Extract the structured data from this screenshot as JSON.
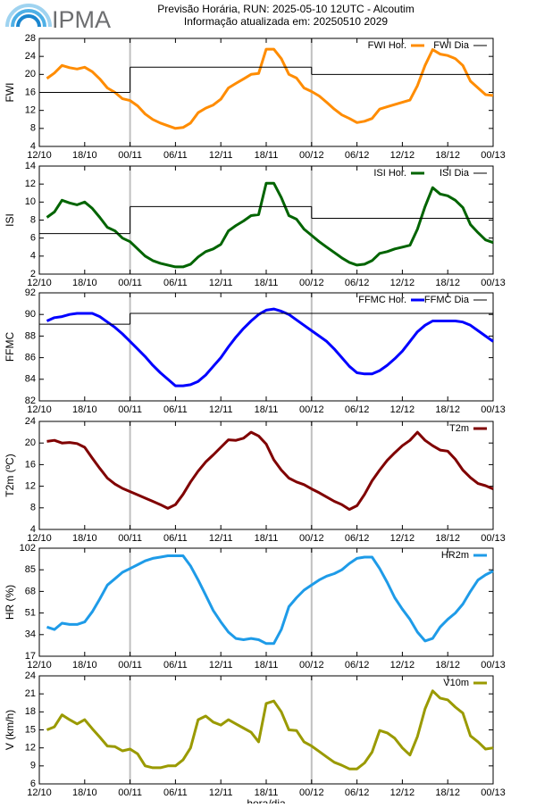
{
  "header": {
    "logo": "IPMA",
    "title": "Previsão Horária, RUN: 2025-05-10 12UTC - Alcoutim",
    "subtitle": "Informação atualizada em: 20250510 2029"
  },
  "chart_data": [
    {
      "type": "line",
      "ylabel": "FWI",
      "legend": "upper right",
      "xlim": [
        0,
        60
      ],
      "vlines": [
        12,
        36
      ],
      "xticks": [
        {
          "value": 0,
          "label": "12/10"
        },
        {
          "value": 6,
          "label": "18/10"
        },
        {
          "value": 12,
          "label": "00/11"
        },
        {
          "value": 18,
          "label": "06/11"
        },
        {
          "value": 24,
          "label": "12/11"
        },
        {
          "value": 30,
          "label": "18/11"
        },
        {
          "value": 36,
          "label": "00/12"
        },
        {
          "value": 42,
          "label": "06/12"
        },
        {
          "value": 48,
          "label": "12/12"
        },
        {
          "value": 54,
          "label": "18/12"
        },
        {
          "value": 60,
          "label": "00/13"
        }
      ],
      "ylim": [
        4,
        28
      ],
      "yticks": [
        4,
        8,
        12,
        16,
        20,
        24,
        28
      ],
      "x": [
        1,
        2,
        3,
        4,
        5,
        6,
        7,
        8,
        9,
        10,
        11,
        12,
        13,
        14,
        15,
        16,
        17,
        18,
        19,
        20,
        21,
        22,
        23,
        24,
        25,
        26,
        27,
        28,
        29,
        30,
        31,
        32,
        33,
        34,
        35,
        36,
        37,
        38,
        39,
        40,
        41,
        42,
        43,
        44,
        45,
        46,
        47,
        48,
        49,
        50,
        51,
        52,
        53,
        54,
        55,
        56,
        57,
        58,
        59,
        60
      ],
      "series": [
        {
          "name": "FWI Hor.",
          "color": "#ff8c00",
          "values": [
            19.1,
            20.3,
            22,
            21.5,
            21.2,
            21.6,
            20.6,
            19,
            17,
            16,
            14.6,
            14.2,
            13,
            11.2,
            10,
            9.2,
            8.6,
            8.0,
            8.2,
            9.2,
            11.5,
            12.5,
            13.2,
            14.5,
            17,
            18,
            19,
            20,
            20.2,
            25.6,
            25.6,
            23.5,
            20,
            19.2,
            17,
            16.2,
            15.2,
            13.8,
            12.3,
            11,
            10.2,
            9.3,
            9.6,
            10.2,
            12.3,
            12.8,
            13.3,
            13.8,
            14.3,
            17.5,
            22,
            25.5,
            24.5,
            24.2,
            23.5,
            22,
            18.5,
            17,
            15.5,
            15.3
          ]
        },
        {
          "name": "FWI Dia",
          "color": "#000000",
          "step": "post",
          "x": [
            0,
            12,
            36
          ],
          "values": [
            16,
            21.6,
            20
          ]
        }
      ]
    },
    {
      "type": "line",
      "ylabel": "ISI",
      "legend": "upper right",
      "xlim": [
        0,
        60
      ],
      "vlines": [
        12,
        36
      ],
      "xticks": [
        {
          "value": 0,
          "label": "12/10"
        },
        {
          "value": 6,
          "label": "18/10"
        },
        {
          "value": 12,
          "label": "00/11"
        },
        {
          "value": 18,
          "label": "06/11"
        },
        {
          "value": 24,
          "label": "12/11"
        },
        {
          "value": 30,
          "label": "18/11"
        },
        {
          "value": 36,
          "label": "00/12"
        },
        {
          "value": 42,
          "label": "06/12"
        },
        {
          "value": 48,
          "label": "12/12"
        },
        {
          "value": 54,
          "label": "18/12"
        },
        {
          "value": 60,
          "label": "00/13"
        }
      ],
      "ylim": [
        2,
        14
      ],
      "yticks": [
        2,
        4,
        6,
        8,
        10,
        12,
        14
      ],
      "x": [
        1,
        2,
        3,
        4,
        5,
        6,
        7,
        8,
        9,
        10,
        11,
        12,
        13,
        14,
        15,
        16,
        17,
        18,
        19,
        20,
        21,
        22,
        23,
        24,
        25,
        26,
        27,
        28,
        29,
        30,
        31,
        32,
        33,
        34,
        35,
        36,
        37,
        38,
        39,
        40,
        41,
        42,
        43,
        44,
        45,
        46,
        47,
        48,
        49,
        50,
        51,
        52,
        53,
        54,
        55,
        56,
        57,
        58,
        59,
        60
      ],
      "series": [
        {
          "name": "ISI Hor.",
          "color": "#006400",
          "values": [
            8.3,
            8.9,
            10.2,
            9.9,
            9.7,
            10,
            9.3,
            8.3,
            7.2,
            6.8,
            6,
            5.6,
            4.8,
            4,
            3.5,
            3.2,
            3,
            2.8,
            2.8,
            3.1,
            3.9,
            4.5,
            4.8,
            5.3,
            6.8,
            7.4,
            7.9,
            8.5,
            8.6,
            12.1,
            12.1,
            10.5,
            8.5,
            8.1,
            7,
            6.3,
            5.6,
            5,
            4.4,
            3.8,
            3.3,
            3,
            3.1,
            3.5,
            4.3,
            4.5,
            4.8,
            5,
            5.2,
            7,
            9.5,
            11.6,
            10.9,
            10.7,
            10.2,
            9.4,
            7.5,
            6.6,
            5.8,
            5.5
          ]
        },
        {
          "name": "ISI Dia",
          "color": "#000000",
          "step": "post",
          "x": [
            0,
            12,
            36
          ],
          "values": [
            6.5,
            9.5,
            8.2
          ]
        }
      ]
    },
    {
      "type": "line",
      "ylabel": "FFMC",
      "legend": "upper right",
      "xlim": [
        0,
        60
      ],
      "vlines": [
        12,
        36
      ],
      "xticks": [
        {
          "value": 0,
          "label": "12/10"
        },
        {
          "value": 6,
          "label": "18/10"
        },
        {
          "value": 12,
          "label": "00/11"
        },
        {
          "value": 18,
          "label": "06/11"
        },
        {
          "value": 24,
          "label": "12/11"
        },
        {
          "value": 30,
          "label": "18/11"
        },
        {
          "value": 36,
          "label": "00/12"
        },
        {
          "value": 42,
          "label": "06/12"
        },
        {
          "value": 48,
          "label": "12/12"
        },
        {
          "value": 54,
          "label": "18/12"
        },
        {
          "value": 60,
          "label": "00/13"
        }
      ],
      "ylim": [
        82,
        92
      ],
      "yticks": [
        82,
        84,
        86,
        88,
        90,
        92
      ],
      "x": [
        1,
        2,
        3,
        4,
        5,
        6,
        7,
        8,
        9,
        10,
        11,
        12,
        13,
        14,
        15,
        16,
        17,
        18,
        19,
        20,
        21,
        22,
        23,
        24,
        25,
        26,
        27,
        28,
        29,
        30,
        31,
        32,
        33,
        34,
        35,
        36,
        37,
        38,
        39,
        40,
        41,
        42,
        43,
        44,
        45,
        46,
        47,
        48,
        49,
        50,
        51,
        52,
        53,
        54,
        55,
        56,
        57,
        58,
        59,
        60
      ],
      "series": [
        {
          "name": "FFMC Hor.",
          "color": "#0000ff",
          "values": [
            89.4,
            89.7,
            89.8,
            90,
            90.1,
            90.1,
            90.1,
            89.8,
            89.3,
            88.8,
            88.2,
            87.5,
            86.8,
            86.1,
            85.3,
            84.6,
            84,
            83.4,
            83.4,
            83.5,
            83.8,
            84.4,
            85.2,
            86,
            87,
            87.9,
            88.7,
            89.4,
            90,
            90.4,
            90.5,
            90.3,
            90,
            89.5,
            89,
            88.5,
            88,
            87.5,
            86.8,
            86,
            85.2,
            84.6,
            84.5,
            84.5,
            84.8,
            85.3,
            85.9,
            86.6,
            87.5,
            88.4,
            89,
            89.4,
            89.4,
            89.4,
            89.4,
            89.3,
            89,
            88.5,
            88,
            87.5
          ]
        },
        {
          "name": "FFMC Dia",
          "color": "#000000",
          "step": "post",
          "x": [
            0,
            12
          ],
          "values": [
            89.1,
            90.1
          ]
        }
      ]
    },
    {
      "type": "line",
      "ylabel": "T2m (ºC)",
      "legend": "upper right",
      "xlim": [
        0,
        60
      ],
      "vlines": [
        12,
        36
      ],
      "xticks": [
        {
          "value": 0,
          "label": "12/10"
        },
        {
          "value": 6,
          "label": "18/10"
        },
        {
          "value": 12,
          "label": "00/11"
        },
        {
          "value": 18,
          "label": "06/11"
        },
        {
          "value": 24,
          "label": "12/11"
        },
        {
          "value": 30,
          "label": "18/11"
        },
        {
          "value": 36,
          "label": "00/12"
        },
        {
          "value": 42,
          "label": "06/12"
        },
        {
          "value": 48,
          "label": "12/12"
        },
        {
          "value": 54,
          "label": "18/12"
        },
        {
          "value": 60,
          "label": "00/13"
        }
      ],
      "ylim": [
        4,
        24
      ],
      "yticks": [
        4,
        8,
        12,
        16,
        20,
        24
      ],
      "x": [
        1,
        2,
        3,
        4,
        5,
        6,
        7,
        8,
        9,
        10,
        11,
        12,
        13,
        14,
        15,
        16,
        17,
        18,
        19,
        20,
        21,
        22,
        23,
        24,
        25,
        26,
        27,
        28,
        29,
        30,
        31,
        32,
        33,
        34,
        35,
        36,
        37,
        38,
        39,
        40,
        41,
        42,
        43,
        44,
        45,
        46,
        47,
        48,
        49,
        50,
        51,
        52,
        53,
        54,
        55,
        56,
        57,
        58,
        59,
        60
      ],
      "series": [
        {
          "name": "T2m",
          "color": "#800000",
          "values": [
            20.3,
            20.5,
            20,
            20.1,
            19.9,
            19.2,
            17.2,
            15.3,
            13.5,
            12.4,
            11.6,
            11,
            10.4,
            9.8,
            9.2,
            8.6,
            7.9,
            8.6,
            10.5,
            12.8,
            14.8,
            16.5,
            17.8,
            19.2,
            20.6,
            20.5,
            20.9,
            22,
            21.3,
            19.8,
            16.9,
            15,
            13.5,
            12.8,
            12.3,
            11.5,
            10.8,
            10,
            9.2,
            8.6,
            7.7,
            8.4,
            10.5,
            13,
            15,
            16.8,
            18.2,
            19.5,
            20.5,
            22,
            20.5,
            19.5,
            18.7,
            18.5,
            17,
            15,
            13.6,
            12.5,
            12.1,
            11.5
          ]
        }
      ]
    },
    {
      "type": "line",
      "ylabel": "HR (%)",
      "legend": "upper right",
      "xlim": [
        0,
        60
      ],
      "vlines": [
        12,
        36
      ],
      "xticks": [
        {
          "value": 0,
          "label": "12/10"
        },
        {
          "value": 6,
          "label": "18/10"
        },
        {
          "value": 12,
          "label": "00/11"
        },
        {
          "value": 18,
          "label": "06/11"
        },
        {
          "value": 24,
          "label": "12/11"
        },
        {
          "value": 30,
          "label": "18/11"
        },
        {
          "value": 36,
          "label": "00/12"
        },
        {
          "value": 42,
          "label": "06/12"
        },
        {
          "value": 48,
          "label": "12/12"
        },
        {
          "value": 54,
          "label": "18/12"
        },
        {
          "value": 60,
          "label": "00/13"
        }
      ],
      "ylim": [
        17,
        102
      ],
      "yticks": [
        17,
        34,
        51,
        68,
        85,
        102
      ],
      "x": [
        1,
        2,
        3,
        4,
        5,
        6,
        7,
        8,
        9,
        10,
        11,
        12,
        13,
        14,
        15,
        16,
        17,
        18,
        19,
        20,
        21,
        22,
        23,
        24,
        25,
        26,
        27,
        28,
        29,
        30,
        31,
        32,
        33,
        34,
        35,
        36,
        37,
        38,
        39,
        40,
        41,
        42,
        43,
        44,
        45,
        46,
        47,
        48,
        49,
        50,
        51,
        52,
        53,
        54,
        55,
        56,
        57,
        58,
        59,
        60
      ],
      "series": [
        {
          "name": "HR2m",
          "color": "#1e9be8",
          "values": [
            40,
            38,
            43,
            42,
            42,
            44,
            52,
            62,
            73,
            78,
            83,
            86,
            89,
            92,
            94,
            95,
            96,
            96,
            96,
            88,
            77,
            65,
            53,
            44,
            36,
            31,
            30,
            31,
            30,
            27,
            27,
            38,
            56,
            63,
            69,
            73,
            77,
            80,
            82,
            85,
            90,
            94,
            95,
            95,
            86,
            75,
            63,
            54,
            46,
            36,
            29,
            31,
            40,
            46,
            51,
            58,
            68,
            77,
            81,
            84
          ]
        }
      ]
    },
    {
      "type": "line",
      "ylabel": "V (km/h)",
      "xlabel": "hora/dia",
      "legend": "upper right",
      "xlim": [
        0,
        60
      ],
      "vlines": [
        12,
        36
      ],
      "xticks": [
        {
          "value": 0,
          "label": "12/10"
        },
        {
          "value": 6,
          "label": "18/10"
        },
        {
          "value": 12,
          "label": "00/11"
        },
        {
          "value": 18,
          "label": "06/11"
        },
        {
          "value": 24,
          "label": "12/11"
        },
        {
          "value": 30,
          "label": "18/11"
        },
        {
          "value": 36,
          "label": "00/12"
        },
        {
          "value": 42,
          "label": "06/12"
        },
        {
          "value": 48,
          "label": "12/12"
        },
        {
          "value": 54,
          "label": "18/12"
        },
        {
          "value": 60,
          "label": "00/13"
        }
      ],
      "ylim": [
        6,
        24
      ],
      "yticks": [
        6,
        9,
        12,
        15,
        18,
        21,
        24
      ],
      "x": [
        1,
        2,
        3,
        4,
        5,
        6,
        7,
        8,
        9,
        10,
        11,
        12,
        13,
        14,
        15,
        16,
        17,
        18,
        19,
        20,
        21,
        22,
        23,
        24,
        25,
        26,
        27,
        28,
        29,
        30,
        31,
        32,
        33,
        34,
        35,
        36,
        37,
        38,
        39,
        40,
        41,
        42,
        43,
        44,
        45,
        46,
        47,
        48,
        49,
        50,
        51,
        52,
        53,
        54,
        55,
        56,
        57,
        58,
        59,
        60
      ],
      "series": [
        {
          "name": "V10m",
          "color": "#9a9a00",
          "values": [
            15,
            15.5,
            17.5,
            16.7,
            16,
            16.7,
            15.2,
            13.8,
            12.3,
            12.2,
            11.5,
            11.8,
            11,
            9,
            8.7,
            8.7,
            9,
            9,
            10,
            12,
            16.7,
            17.3,
            16.3,
            15.8,
            16.7,
            16,
            15.3,
            14.6,
            13,
            19.4,
            19.8,
            18,
            15,
            14.9,
            13,
            12.3,
            11.4,
            10.5,
            9.6,
            9.1,
            8.5,
            8.5,
            9.5,
            11.3,
            14.9,
            14.5,
            13.6,
            12,
            10.8,
            13.9,
            18.5,
            21.5,
            20.3,
            20,
            18.8,
            17.8,
            14,
            13,
            11.8,
            12
          ]
        }
      ]
    }
  ]
}
